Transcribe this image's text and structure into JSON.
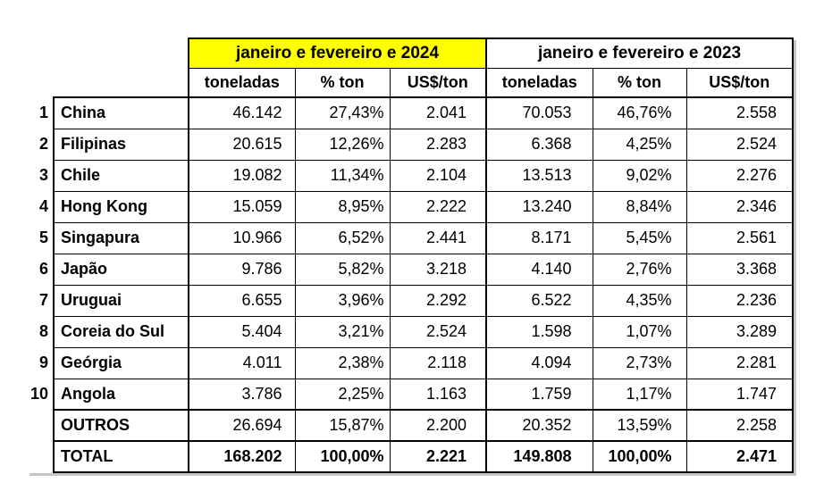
{
  "style": {
    "highlight_2024_bg": "#FFFF00",
    "header_2023_bg": "#FFFFFF",
    "border_color": "#000000",
    "shadow_color": "#C6C6C6",
    "text_color": "#000000"
  },
  "chart_data": {
    "type": "table",
    "title": "",
    "groups": [
      {
        "label": "janeiro e fevereiro e 2024",
        "bg": "#FFFF00",
        "columns": [
          "toneladas",
          "% ton",
          "US$/ton"
        ]
      },
      {
        "label": "janeiro e fevereiro e 2023",
        "bg": "#FFFFFF",
        "columns": [
          "toneladas",
          "% ton",
          "US$/ton"
        ]
      }
    ],
    "rows": [
      {
        "rank": "1",
        "label": "China",
        "values": [
          "46.142",
          "27,43%",
          "2.041",
          "70.053",
          "46,76%",
          "2.558"
        ]
      },
      {
        "rank": "2",
        "label": "Filipinas",
        "values": [
          "20.615",
          "12,26%",
          "2.283",
          "6.368",
          "4,25%",
          "2.524"
        ]
      },
      {
        "rank": "3",
        "label": "Chile",
        "values": [
          "19.082",
          "11,34%",
          "2.104",
          "13.513",
          "9,02%",
          "2.276"
        ]
      },
      {
        "rank": "4",
        "label": "Hong Kong",
        "values": [
          "15.059",
          "8,95%",
          "2.222",
          "13.240",
          "8,84%",
          "2.346"
        ]
      },
      {
        "rank": "5",
        "label": "Singapura",
        "values": [
          "10.966",
          "6,52%",
          "2.441",
          "8.171",
          "5,45%",
          "2.561"
        ]
      },
      {
        "rank": "6",
        "label": "Japão",
        "values": [
          "9.786",
          "5,82%",
          "3.218",
          "4.140",
          "2,76%",
          "3.368"
        ]
      },
      {
        "rank": "7",
        "label": "Uruguai",
        "values": [
          "6.655",
          "3,96%",
          "2.292",
          "6.522",
          "4,35%",
          "2.236"
        ]
      },
      {
        "rank": "8",
        "label": "Coreia do Sul",
        "values": [
          "5.404",
          "3,21%",
          "2.524",
          "1.598",
          "1,07%",
          "3.289"
        ]
      },
      {
        "rank": "9",
        "label": "Geórgia",
        "values": [
          "4.011",
          "2,38%",
          "2.118",
          "4.094",
          "2,73%",
          "2.281"
        ]
      },
      {
        "rank": "10",
        "label": "Angola",
        "values": [
          "3.786",
          "2,25%",
          "1.163",
          "1.759",
          "1,17%",
          "1.747"
        ]
      },
      {
        "rank": "",
        "label": "OUTROS",
        "values": [
          "26.694",
          "15,87%",
          "2.200",
          "20.352",
          "13,59%",
          "2.258"
        ]
      },
      {
        "rank": "",
        "label": "TOTAL",
        "values": [
          "168.202",
          "100,00%",
          "2.221",
          "149.808",
          "100,00%",
          "2.471"
        ]
      }
    ]
  }
}
